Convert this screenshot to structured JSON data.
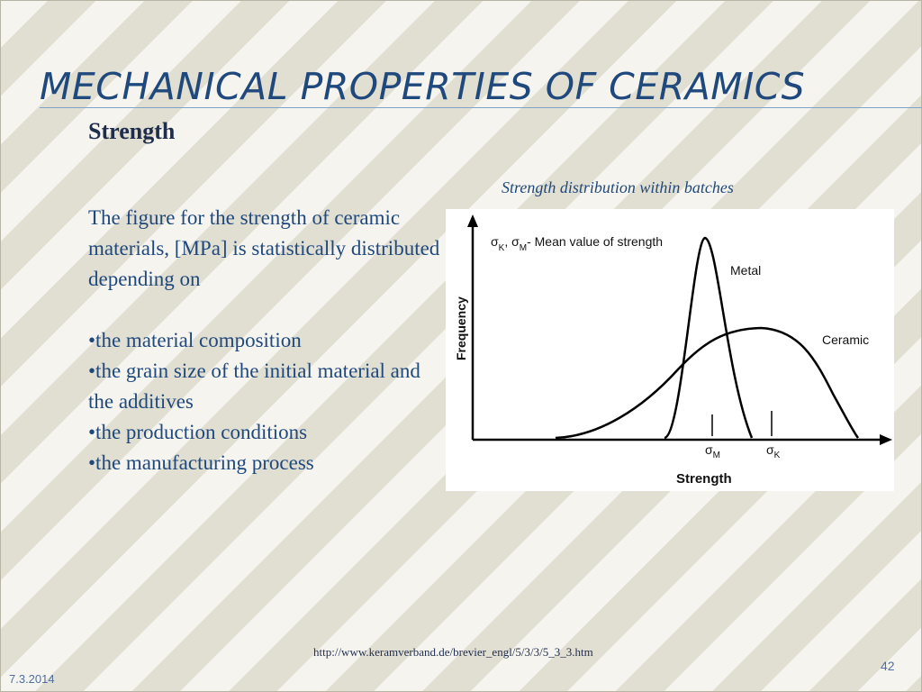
{
  "slide": {
    "title": "MECHANICAL PROPERTIES OF CERAMICS",
    "subtitle": "Strength",
    "figure_caption": "Strength distribution within batches",
    "paragraph": "The figure for the strength of ceramic materials, [MPa] is statistically distributed depending on",
    "bullets": [
      "•the material composition",
      "•the grain size of the initial material and the additives",
      "•the production conditions",
      "•the manufacturing process"
    ],
    "source_url": "http://www.keramverband.de/brevier_engl/5/3/3/5_3_3.htm",
    "date": "7.3.2014",
    "page_number": "42"
  },
  "chart_data": {
    "type": "line",
    "xlabel": "Strength",
    "ylabel": "Frequency",
    "legend_note": "- Mean value of strength",
    "series": [
      {
        "name": "Metal",
        "shape": "narrow distribution",
        "mean_label": "M"
      },
      {
        "name": "Ceramic",
        "shape": "wide distribution",
        "mean_label": "K"
      }
    ],
    "mean_symbol": "σ",
    "grid": false
  }
}
